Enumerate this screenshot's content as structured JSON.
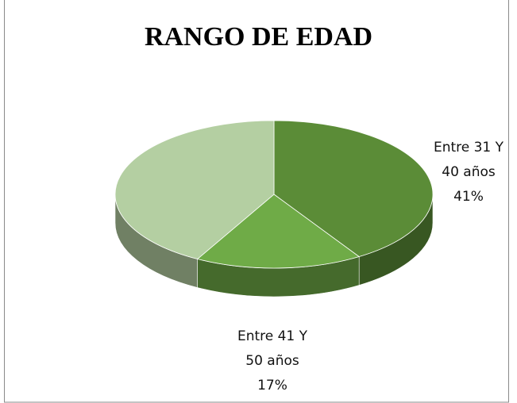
{
  "chart_data": {
    "type": "pie3d",
    "title": "RANGO DE EDAD",
    "categories": [
      "Entre 31 Y 40 años",
      "Entre 41 Y 50 años",
      null
    ],
    "values": [
      41,
      17,
      42
    ],
    "value_labels": [
      "41%",
      "17%",
      null
    ],
    "colors": [
      "#5b8c37",
      "#6fab47",
      "#b4cfa2"
    ]
  }
}
